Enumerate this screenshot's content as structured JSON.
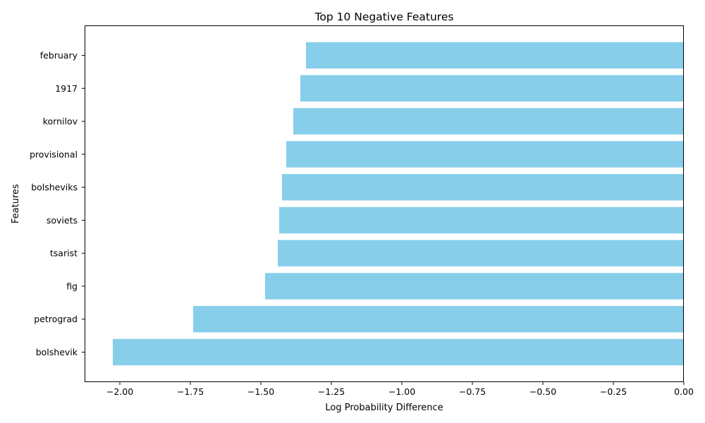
{
  "chart_data": {
    "type": "bar",
    "orientation": "horizontal",
    "title": "Top 10 Negative Features",
    "xlabel": "Log Probability Difference",
    "ylabel": "Features",
    "categories": [
      "february",
      "1917",
      "kornilov",
      "provisional",
      "bolsheviks",
      "soviets",
      "tsarist",
      "fig",
      "petrograd",
      "bolshevik"
    ],
    "values": [
      -1.34,
      -1.36,
      -1.385,
      -1.41,
      -1.425,
      -1.435,
      -1.44,
      -1.485,
      -1.74,
      -2.025
    ],
    "xlim": [
      -2.125,
      0.0
    ],
    "xticks": [
      -2.0,
      -1.75,
      -1.5,
      -1.25,
      -1.0,
      -0.75,
      -0.5,
      -0.25,
      0.0
    ],
    "xtick_labels": [
      "−2.00",
      "−1.75",
      "−1.50",
      "−1.25",
      "−1.00",
      "−0.75",
      "−0.50",
      "−0.25",
      "0.00"
    ],
    "bar_color": "#87CEEB",
    "grid": false,
    "legend": false
  }
}
